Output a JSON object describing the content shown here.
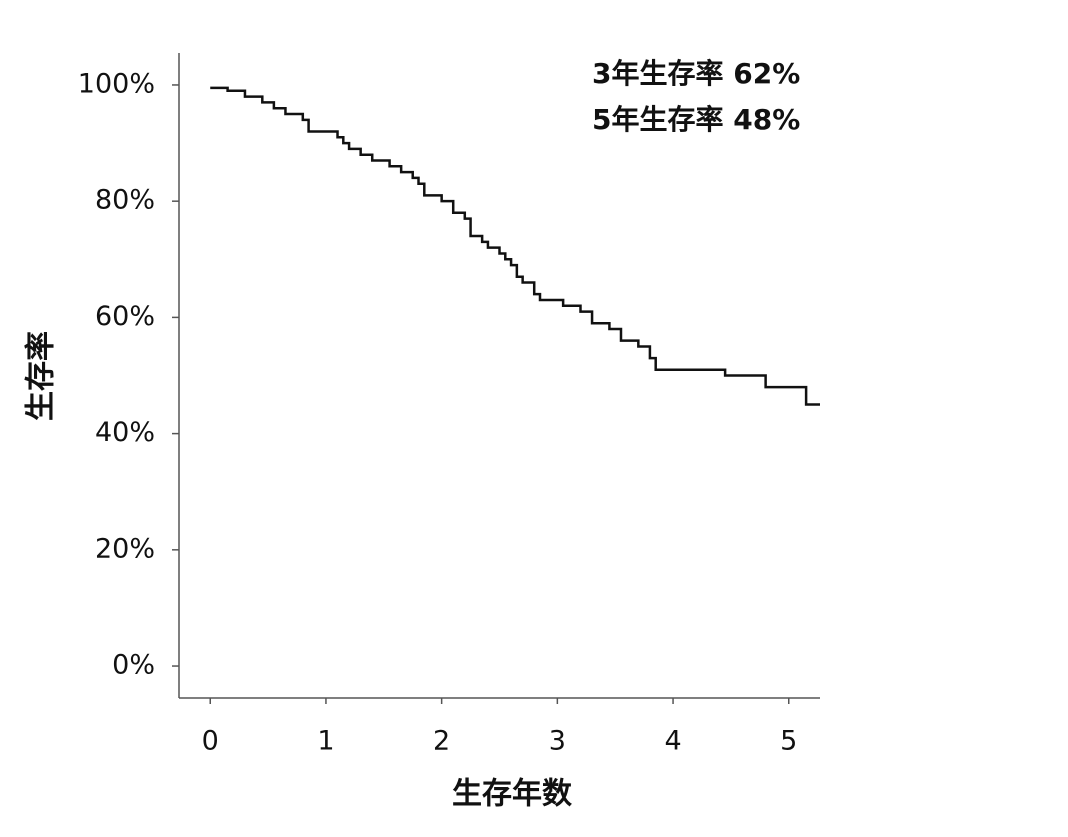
{
  "chart_data": {
    "type": "step",
    "x_label": "生存年数",
    "y_label": "生存率",
    "annotations": [
      "3年生存率  62%",
      "5年生存率  48%"
    ],
    "color": "#111111",
    "xlim": [
      -0.27,
      5.27
    ],
    "ylim": [
      -5.5,
      105.5
    ],
    "xticks": [
      0,
      1,
      2,
      3,
      4,
      5
    ],
    "yticks": [
      {
        "value": 0,
        "label": "0%"
      },
      {
        "value": 20,
        "label": "20%"
      },
      {
        "value": 40,
        "label": "40%"
      },
      {
        "value": 60,
        "label": "60%"
      },
      {
        "value": 80,
        "label": "80%"
      },
      {
        "value": 100,
        "label": "100%"
      }
    ],
    "x": [
      0,
      0.15,
      0.3,
      0.45,
      0.55,
      0.65,
      0.8,
      0.85,
      1.1,
      1.15,
      1.2,
      1.3,
      1.4,
      1.55,
      1.65,
      1.75,
      1.8,
      1.85,
      2.0,
      2.1,
      2.2,
      2.25,
      2.35,
      2.4,
      2.5,
      2.55,
      2.6,
      2.65,
      2.7,
      2.8,
      2.85,
      3.05,
      3.2,
      3.3,
      3.45,
      3.55,
      3.7,
      3.8,
      3.85,
      4.45,
      4.8,
      5.15,
      5.27
    ],
    "values": [
      99.5,
      99,
      98,
      97,
      96,
      95,
      94,
      92,
      91,
      90,
      89,
      88,
      87,
      86,
      85,
      84,
      83,
      81,
      80,
      78,
      77,
      74,
      73,
      72,
      71,
      70,
      69,
      67,
      66,
      64,
      63,
      62,
      61,
      59,
      58,
      56,
      55,
      53,
      51,
      50,
      48,
      45,
      45
    ]
  }
}
